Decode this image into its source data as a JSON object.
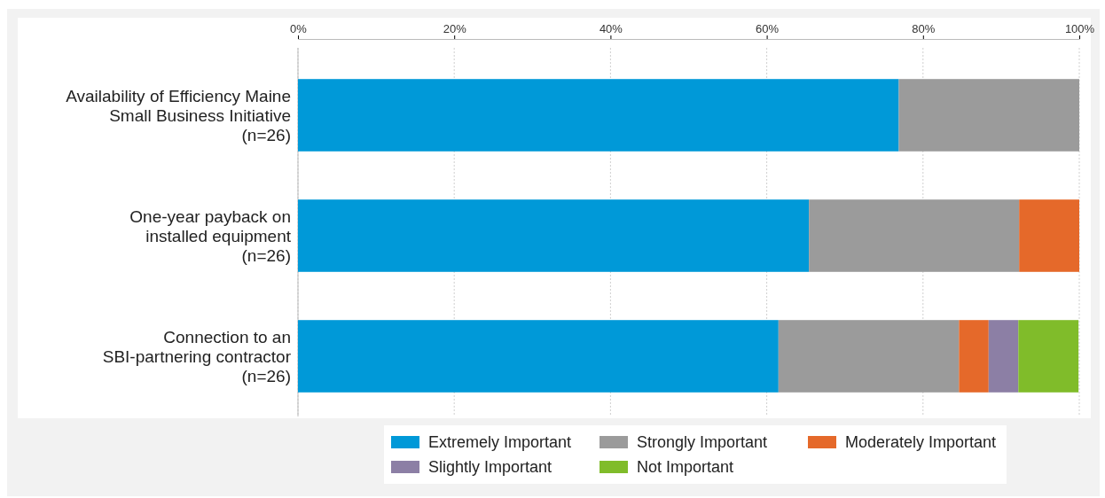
{
  "chart_data": {
    "type": "bar",
    "orientation": "horizontal",
    "stacked": true,
    "categories": [
      "Availability of Efficiency Maine\nSmall Business Initiative\n(n=26)",
      "One-year payback on\ninstalled equipment\n(n=26)",
      "Connection to an\nSBI-partnering contractor\n(n=26)"
    ],
    "series": [
      {
        "name": "Extremely Important",
        "color": "#0099d8",
        "values": [
          76.9,
          65.4,
          61.5
        ]
      },
      {
        "name": "Strongly Important",
        "color": "#9b9b9b",
        "values": [
          23.1,
          26.9,
          23.1
        ]
      },
      {
        "name": "Moderately Important",
        "color": "#e5692a",
        "values": [
          null,
          7.7,
          3.8
        ]
      },
      {
        "name": "Slightly Important",
        "color": "#8c7fa5",
        "values": [
          null,
          null,
          3.8
        ]
      },
      {
        "name": "Not Important",
        "color": "#80bc2a",
        "values": [
          null,
          null,
          7.7
        ]
      }
    ],
    "xlim": [
      0,
      100
    ],
    "xticks": [
      {
        "value": 0,
        "label": "0%"
      },
      {
        "value": 20,
        "label": "20%"
      },
      {
        "value": 40,
        "label": "40%"
      },
      {
        "value": 60,
        "label": "60%"
      },
      {
        "value": 80,
        "label": "80%"
      },
      {
        "value": 100,
        "label": "100%"
      }
    ],
    "grid": "x",
    "legend": "bottom"
  }
}
